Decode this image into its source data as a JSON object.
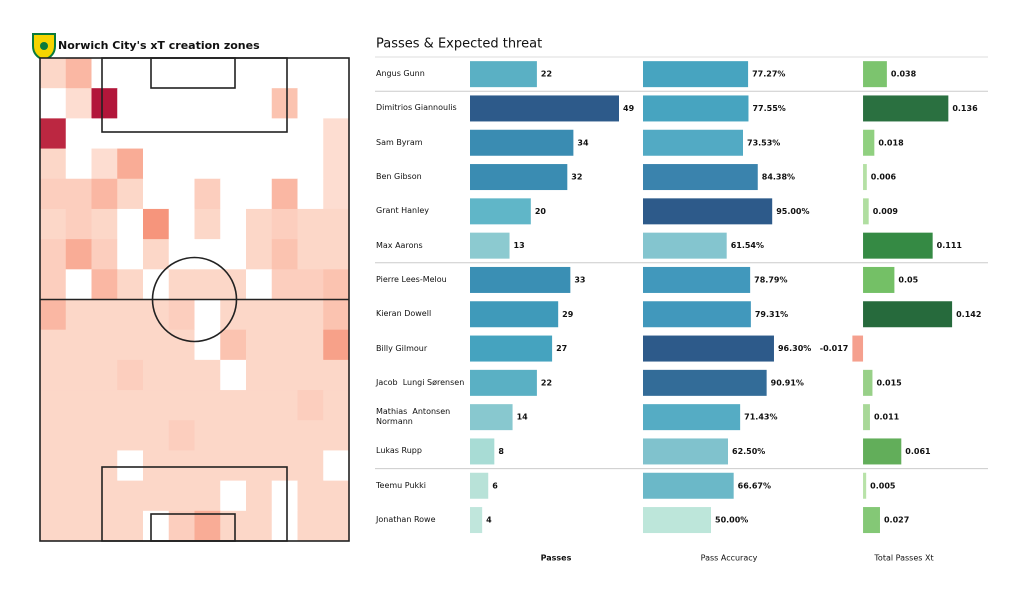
{
  "chart_data": [
    {
      "type": "heatmap",
      "title": "Norwich City's xT creation zones",
      "zlim": [
        0,
        1
      ],
      "colorscale": [
        "#ffffff",
        "#fcd2c2",
        "#f5866a",
        "#b2163a"
      ],
      "values": [
        [
          0.3,
          0.45,
          0,
          0,
          0,
          0,
          0,
          0,
          0,
          0,
          0,
          0
        ],
        [
          0,
          0.25,
          1.0,
          0,
          0,
          0,
          0,
          0,
          0,
          0.4,
          0,
          0
        ],
        [
          0.95,
          0,
          0,
          0,
          0,
          0,
          0,
          0,
          0,
          0,
          0,
          0.25
        ],
        [
          0.3,
          0,
          0.25,
          0.5,
          0,
          0,
          0,
          0,
          0,
          0,
          0,
          0.25
        ],
        [
          0.35,
          0.35,
          0.45,
          0.3,
          0,
          0,
          0.35,
          0,
          0,
          0.45,
          0,
          0.25
        ],
        [
          0.3,
          0.35,
          0.3,
          0,
          0.6,
          0,
          0.3,
          0,
          0.3,
          0.35,
          0.3,
          0.3
        ],
        [
          0.35,
          0.5,
          0.35,
          0,
          0.3,
          0,
          0,
          0,
          0.3,
          0.4,
          0.3,
          0.3
        ],
        [
          0.35,
          0,
          0.45,
          0.3,
          0,
          0.3,
          0.3,
          0.3,
          0,
          0.35,
          0.35,
          0.4
        ],
        [
          0.45,
          0.3,
          0.3,
          0.3,
          0.3,
          0.35,
          0,
          0.3,
          0.3,
          0.3,
          0.3,
          0.4
        ],
        [
          0.3,
          0.3,
          0.3,
          0.3,
          0.3,
          0.3,
          0,
          0.4,
          0.3,
          0.3,
          0.3,
          0.55
        ],
        [
          0.3,
          0.3,
          0.3,
          0.35,
          0.3,
          0.3,
          0.3,
          0,
          0.3,
          0.3,
          0.3,
          0.3
        ],
        [
          0.3,
          0.3,
          0.3,
          0.3,
          0.3,
          0.3,
          0.3,
          0.3,
          0.3,
          0.3,
          0.35,
          0.3
        ],
        [
          0.3,
          0.3,
          0.3,
          0.3,
          0.3,
          0.35,
          0.3,
          0.3,
          0.3,
          0.3,
          0.3,
          0.3
        ],
        [
          0.3,
          0.3,
          0.3,
          0,
          0.3,
          0.3,
          0.3,
          0.3,
          0.3,
          0.3,
          0.3,
          0
        ],
        [
          0.3,
          0.3,
          0.3,
          0.3,
          0.3,
          0.3,
          0.3,
          0,
          0.3,
          0,
          0.3,
          0.3
        ],
        [
          0.3,
          0.3,
          0.3,
          0.3,
          0,
          0.35,
          0.5,
          0.3,
          0.3,
          0,
          0.3,
          0.3
        ]
      ]
    },
    {
      "type": "bar",
      "title": "Passes & Expected threat",
      "categories": [
        "Angus Gunn",
        "Dimitrios Giannoulis",
        "Sam Byram",
        "Ben Gibson",
        "Grant Hanley",
        "Max Aarons",
        "Pierre Lees-Melou",
        "Kieran Dowell",
        "Billy Gilmour",
        "Jacob  Lungi Sørensen",
        "Mathias  Antonsen Normann",
        "Lukas Rupp",
        "Teemu Pukki",
        "Jonathan Rowe"
      ],
      "series": [
        {
          "name": "Passes",
          "xlim": [
            0,
            49
          ],
          "values": [
            22,
            49,
            34,
            32,
            20,
            13,
            33,
            29,
            27,
            22,
            14,
            8,
            6,
            4
          ],
          "colors": [
            "#5ab0c4",
            "#2d5a8a",
            "#3a8cb2",
            "#3a8cb2",
            "#60b6c8",
            "#8ccad0",
            "#3a8fb4",
            "#3f9aba",
            "#45a3bf",
            "#5ab0c4",
            "#88c8cf",
            "#a8dcd5",
            "#b8e2d8",
            "#c0e6dc"
          ]
        },
        {
          "name": "Pass Accuracy",
          "xlim": [
            0,
            100
          ],
          "values": [
            77.27,
            77.55,
            73.53,
            84.38,
            95.0,
            61.54,
            78.79,
            79.31,
            96.3,
            90.91,
            71.43,
            62.5,
            66.67,
            50.0
          ],
          "value_labels": [
            "77.27%",
            "77.55%",
            "73.53%",
            "84.38%",
            "95.00%",
            "61.54%",
            "78.79%",
            "79.31%",
            "96.30%",
            "90.91%",
            "71.43%",
            "62.50%",
            "66.67%",
            "50.00%"
          ],
          "colors": [
            "#47a4c0",
            "#47a4c0",
            "#52aac4",
            "#3a83ad",
            "#2d5a8a",
            "#84c5cf",
            "#4198bc",
            "#4198bc",
            "#2d5a8a",
            "#336c98",
            "#55acc4",
            "#80c2cd",
            "#6bb8c8",
            "#bde6da"
          ]
        },
        {
          "name": "Total Passes Xt",
          "xlim": [
            -0.02,
            0.142
          ],
          "values": [
            0.038,
            0.136,
            0.018,
            0.006,
            0.009,
            0.111,
            0.05,
            0.142,
            -0.017,
            0.015,
            0.011,
            0.061,
            0.005,
            0.027
          ],
          "colors": [
            "#7cc46e",
            "#2a7040",
            "#90d080",
            "#b4e0a4",
            "#b0dea0",
            "#358a44",
            "#74c066",
            "#266a3c",
            "#f5a08e",
            "#98d088",
            "#a8d898",
            "#62ae5a",
            "#b8e2a8",
            "#84c876"
          ]
        }
      ]
    }
  ]
}
